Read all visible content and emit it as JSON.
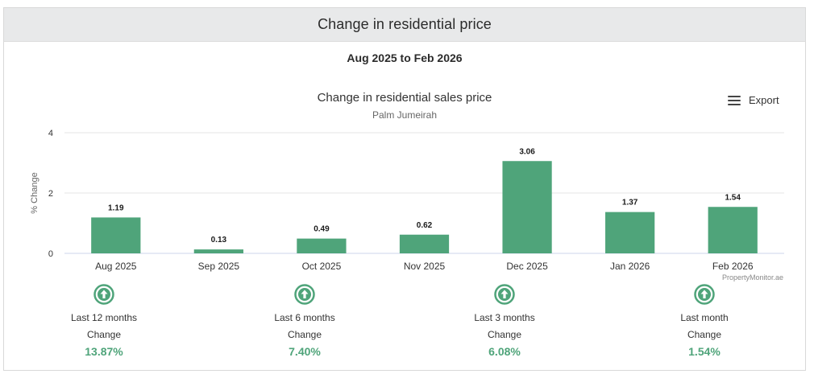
{
  "header": {
    "title": "Change in residential price"
  },
  "period": "Aug 2025 to Feb 2026",
  "export_label": "Export",
  "credit": "PropertyMonitor.ae",
  "colors": {
    "bar": "#4fa47a",
    "positive": "#4fa47a",
    "header_bg": "#e8e9ea"
  },
  "chart_data": {
    "type": "bar",
    "title": "Change in residential sales price",
    "subtitle": "Palm Jumeirah",
    "xlabel": "",
    "ylabel": "% Change",
    "ylim": [
      0,
      4
    ],
    "yticks": [
      0,
      2,
      4
    ],
    "grid": true,
    "categories": [
      "Aug 2025",
      "Sep 2025",
      "Oct 2025",
      "Nov 2025",
      "Dec 2025",
      "Jan 2026",
      "Feb 2026"
    ],
    "values": [
      1.19,
      0.13,
      0.49,
      0.62,
      3.06,
      1.37,
      1.54
    ],
    "value_labels": [
      "1.19",
      "0.13",
      "0.49",
      "0.62",
      "3.06",
      "1.37",
      "1.54"
    ]
  },
  "stats": [
    {
      "label": "Last 12 months",
      "sub": "Change",
      "value": "13.87%",
      "icon": "arrow-up-circle-icon"
    },
    {
      "label": "Last 6 months",
      "sub": "Change",
      "value": "7.40%",
      "icon": "arrow-up-circle-icon"
    },
    {
      "label": "Last 3 months",
      "sub": "Change",
      "value": "6.08%",
      "icon": "arrow-up-circle-icon"
    },
    {
      "label": "Last month",
      "sub": "Change",
      "value": "1.54%",
      "icon": "arrow-up-circle-icon"
    }
  ]
}
